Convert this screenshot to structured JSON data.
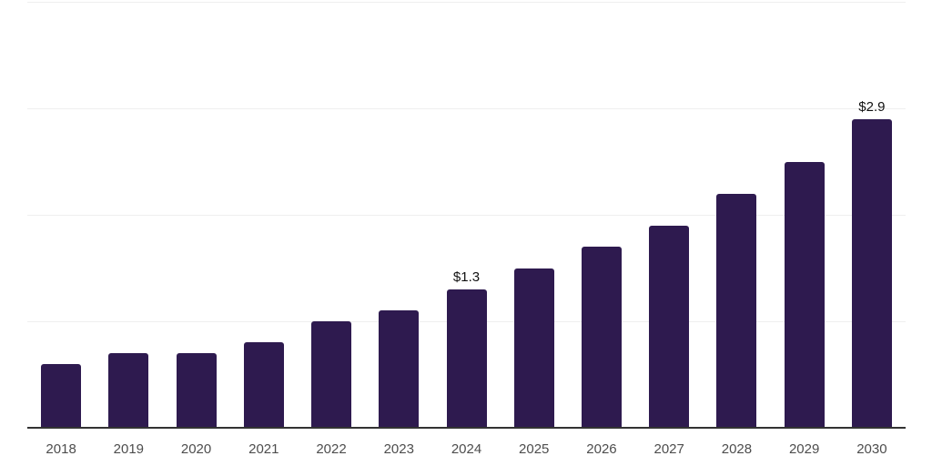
{
  "colors": {
    "background": "#ffffff",
    "bar_fill": "#2E1A4F",
    "axis_line": "#333333",
    "gridline": "#efefef",
    "tick_label": "#4d4d4d",
    "data_label": "#111111"
  },
  "chart_data": {
    "type": "bar",
    "categories": [
      "2018",
      "2019",
      "2020",
      "2021",
      "2022",
      "2023",
      "2024",
      "2025",
      "2026",
      "2027",
      "2028",
      "2029",
      "2030"
    ],
    "values": [
      0.6,
      0.7,
      0.7,
      0.8,
      1.0,
      1.1,
      1.3,
      1.5,
      1.7,
      1.9,
      2.2,
      2.5,
      2.9
    ],
    "point_labels": [
      "",
      "",
      "",
      "",
      "",
      "",
      "$1.3",
      "",
      "",
      "",
      "",
      "",
      "$2.9"
    ],
    "title": "",
    "subtitle": "",
    "xlabel": "",
    "ylabel": "",
    "ylim": [
      0,
      4
    ],
    "y_gridline_step": 1,
    "gridlines": true,
    "legend_visible": false,
    "y_axis_tick_labels_visible": false
  }
}
